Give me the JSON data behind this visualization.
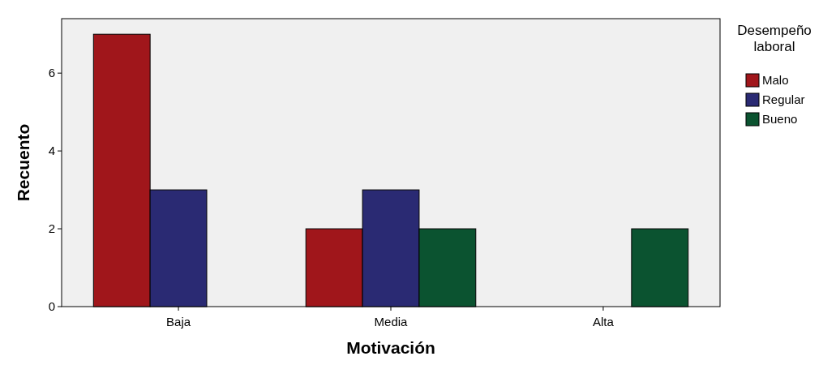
{
  "chart_data": {
    "type": "bar",
    "xlabel": "Motivación",
    "ylabel": "Recuento",
    "legend_title": "Desempeño laboral",
    "categories": [
      "Baja",
      "Media",
      "Alta"
    ],
    "series": [
      {
        "name": "Malo",
        "color": "#a0161b",
        "values": [
          7,
          2,
          0
        ]
      },
      {
        "name": "Regular",
        "color": "#2a2a73",
        "values": [
          3,
          3,
          0
        ]
      },
      {
        "name": "Bueno",
        "color": "#0b5330",
        "values": [
          0,
          2,
          2
        ]
      }
    ],
    "ylim": [
      0,
      7.4
    ],
    "yticks": [
      0,
      2,
      4,
      6
    ],
    "legend": "right",
    "grid": false
  }
}
